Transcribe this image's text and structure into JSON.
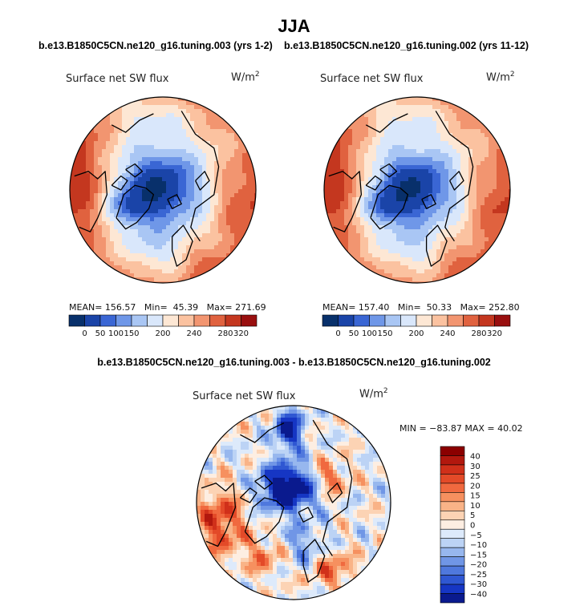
{
  "title": "JJA",
  "panels": [
    {
      "subtitle": "b.e13.B1850C5CN.ne120_g16.tuning.003 (yrs 1-2)",
      "variable": "Surface net SW flux",
      "units": "W/m",
      "units_sup": "2",
      "mean_label": "MEAN=",
      "mean": "156.57",
      "min_label": "Min=",
      "min": "45.39",
      "max_label": "Max=",
      "max": "271.69"
    },
    {
      "subtitle": "b.e13.B1850C5CN.ne120_g16.tuning.002 (yrs 11-12)",
      "variable": "Surface net SW flux",
      "units": "W/m",
      "units_sup": "2",
      "mean_label": "MEAN=",
      "mean": "157.40",
      "min_label": "Min=",
      "min": "50.33",
      "max_label": "Max=",
      "max": "252.80"
    }
  ],
  "diff_panel": {
    "subtitle": "b.e13.B1850C5CN.ne120_g16.tuning.003 - b.e13.B1850C5CN.ne120_g16.tuning.002",
    "variable": "Surface net SW flux",
    "units": "W/m",
    "units_sup": "2",
    "minmax_text": "MIN = −83.87 MAX =  40.02"
  },
  "chart_data": [
    {
      "type": "heatmap",
      "projection": "polar stereographic (north)",
      "field": "Surface net SW flux",
      "season": "JJA",
      "stats": {
        "mean": 156.57,
        "min": 45.39,
        "max": 271.69
      },
      "colorbar": {
        "orientation": "horizontal",
        "tick_labels": [
          "0",
          "50",
          "100",
          "150",
          "200",
          "240",
          "280",
          "320"
        ],
        "colors": [
          "#08306b",
          "#1a44a8",
          "#3a66d4",
          "#6f97e8",
          "#a9c6f4",
          "#d9e7fb",
          "#fde7d4",
          "#fbc2a0",
          "#f29570",
          "#e0623f",
          "#c4371f",
          "#990f0f"
        ]
      }
    },
    {
      "type": "heatmap",
      "projection": "polar stereographic (north)",
      "field": "Surface net SW flux",
      "season": "JJA",
      "stats": {
        "mean": 157.4,
        "min": 50.33,
        "max": 252.8
      },
      "colorbar": {
        "orientation": "horizontal",
        "tick_labels": [
          "0",
          "50",
          "100",
          "150",
          "200",
          "240",
          "280",
          "320"
        ],
        "colors": [
          "#08306b",
          "#1a44a8",
          "#3a66d4",
          "#6f97e8",
          "#a9c6f4",
          "#d9e7fb",
          "#fde7d4",
          "#fbc2a0",
          "#f29570",
          "#e0623f",
          "#c4371f",
          "#990f0f"
        ]
      }
    },
    {
      "type": "heatmap",
      "projection": "polar stereographic (north)",
      "field": "Surface net SW flux difference",
      "stats": {
        "min": -83.87,
        "max": 40.02
      },
      "colorbar": {
        "orientation": "vertical",
        "tick_labels": [
          "40",
          "30",
          "25",
          "20",
          "15",
          "10",
          "5",
          "0",
          "−5",
          "−10",
          "−15",
          "−20",
          "−25",
          "−30",
          "−40"
        ],
        "colors": [
          "#8b0000",
          "#b2180e",
          "#d0301a",
          "#e34a28",
          "#f0693f",
          "#f6905f",
          "#f9b387",
          "#fcd3b4",
          "#fdeee2",
          "#ddeafb",
          "#bcd3f5",
          "#97b7ee",
          "#7096e6",
          "#4f78dd",
          "#2f57d2",
          "#1636c4",
          "#0a1a8e"
        ]
      }
    }
  ]
}
